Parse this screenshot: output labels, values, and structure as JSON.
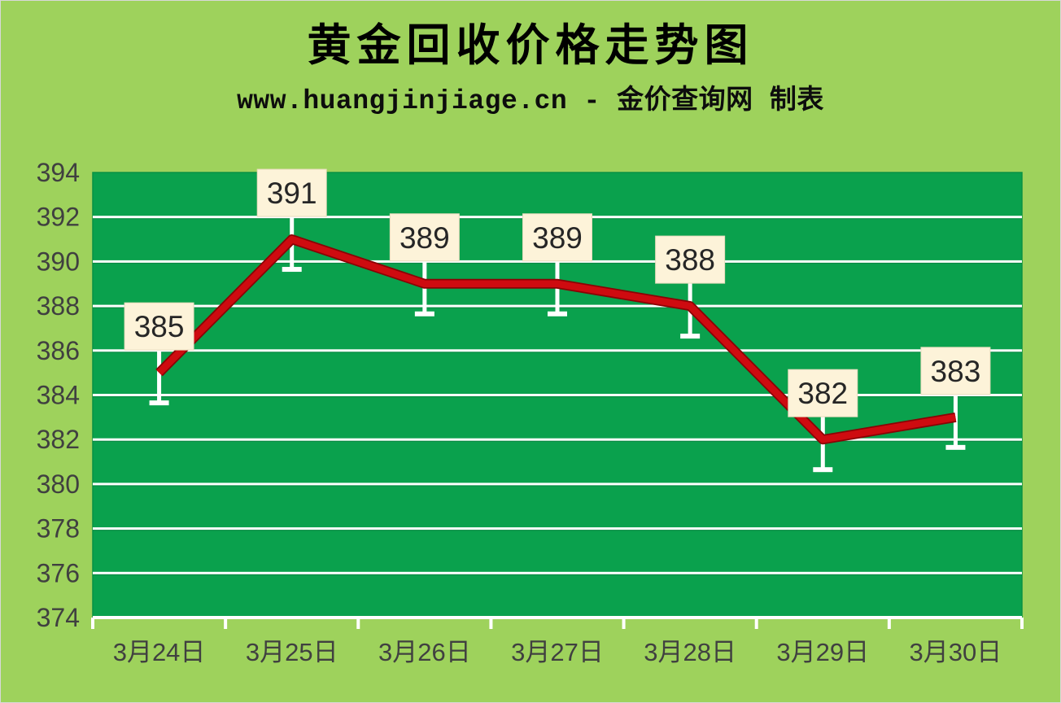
{
  "header": {
    "title": "黄金回收价格走势图",
    "subtitle": "www.huangjinjiage.cn - 金价查询网 制表"
  },
  "chart_data": {
    "type": "line",
    "title": "黄金回收价格走势图",
    "subtitle": "www.huangjinjiage.cn - 金价查询网 制表",
    "categories": [
      "3月24日",
      "3月25日",
      "3月26日",
      "3月27日",
      "3月28日",
      "3月29日",
      "3月30日"
    ],
    "values": [
      385,
      391,
      389,
      389,
      388,
      382,
      383
    ],
    "data_labels": [
      "385",
      "391",
      "389",
      "389",
      "388",
      "382",
      "383"
    ],
    "ylim": [
      374,
      394
    ],
    "ytick_step": 2,
    "yticks": [
      374,
      376,
      378,
      380,
      382,
      384,
      386,
      388,
      390,
      392,
      394
    ],
    "xlabel": "",
    "ylabel": "",
    "grid": true,
    "legend": "none",
    "error_bar_down_units": 1.3,
    "colors": {
      "page_bg": "#9ed25c",
      "plot_bg": "#0aa14d",
      "plot_border": "#089144",
      "line": "#ce0b10",
      "line_edge": "#8a0205",
      "gridline": "#ffffff",
      "whisker": "#ffffff",
      "label_box_bg": "#fdf3d9",
      "label_box_border": "#e8dcbd",
      "label_text": "#262626",
      "axis_text": "#404040",
      "title_text": "#000000"
    }
  }
}
